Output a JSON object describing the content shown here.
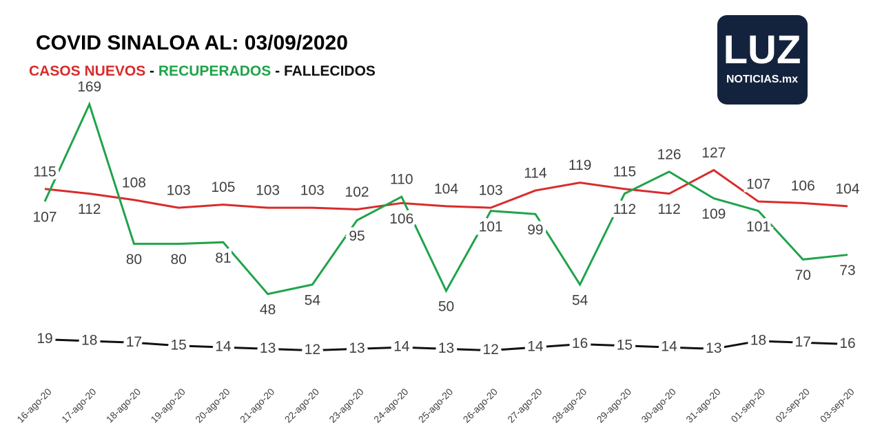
{
  "chart_data": {
    "type": "line",
    "title": "COVID SINALOA AL: 03/09/2020",
    "separator": "-",
    "logo": {
      "main": "LUZ",
      "sub": "NOTICIAS.mx"
    },
    "categories": [
      "16-ago-20",
      "17-ago-20",
      "18-ago-20",
      "19-ago-20",
      "20-ago-20",
      "21-ago-20",
      "22-ago-20",
      "23-ago-20",
      "24-ago-20",
      "25-ago-20",
      "26-ago-20",
      "27-ago-20",
      "28-ago-20",
      "29-ago-20",
      "30-ago-20",
      "31-ago-20",
      "01-sep-20",
      "02-sep-20",
      "03-sep-20"
    ],
    "series": [
      {
        "name": "CASOS NUEVOS",
        "color": "#d92b2b",
        "values": [
          115,
          112,
          108,
          103,
          105,
          103,
          103,
          102,
          106,
          104,
          103,
          114,
          119,
          115,
          112,
          127,
          107,
          106,
          104
        ]
      },
      {
        "name": "RECUPERADOS",
        "color": "#1fa34a",
        "values": [
          107,
          169,
          80,
          80,
          81,
          48,
          54,
          95,
          110,
          50,
          101,
          99,
          54,
          112,
          126,
          109,
          101,
          70,
          73
        ]
      },
      {
        "name": "FALLECIDOS",
        "color": "#111111",
        "values": [
          19,
          18,
          17,
          15,
          14,
          13,
          12,
          13,
          14,
          13,
          12,
          14,
          16,
          15,
          14,
          13,
          18,
          17,
          16
        ]
      }
    ],
    "ylim": [
      0,
      200
    ]
  }
}
